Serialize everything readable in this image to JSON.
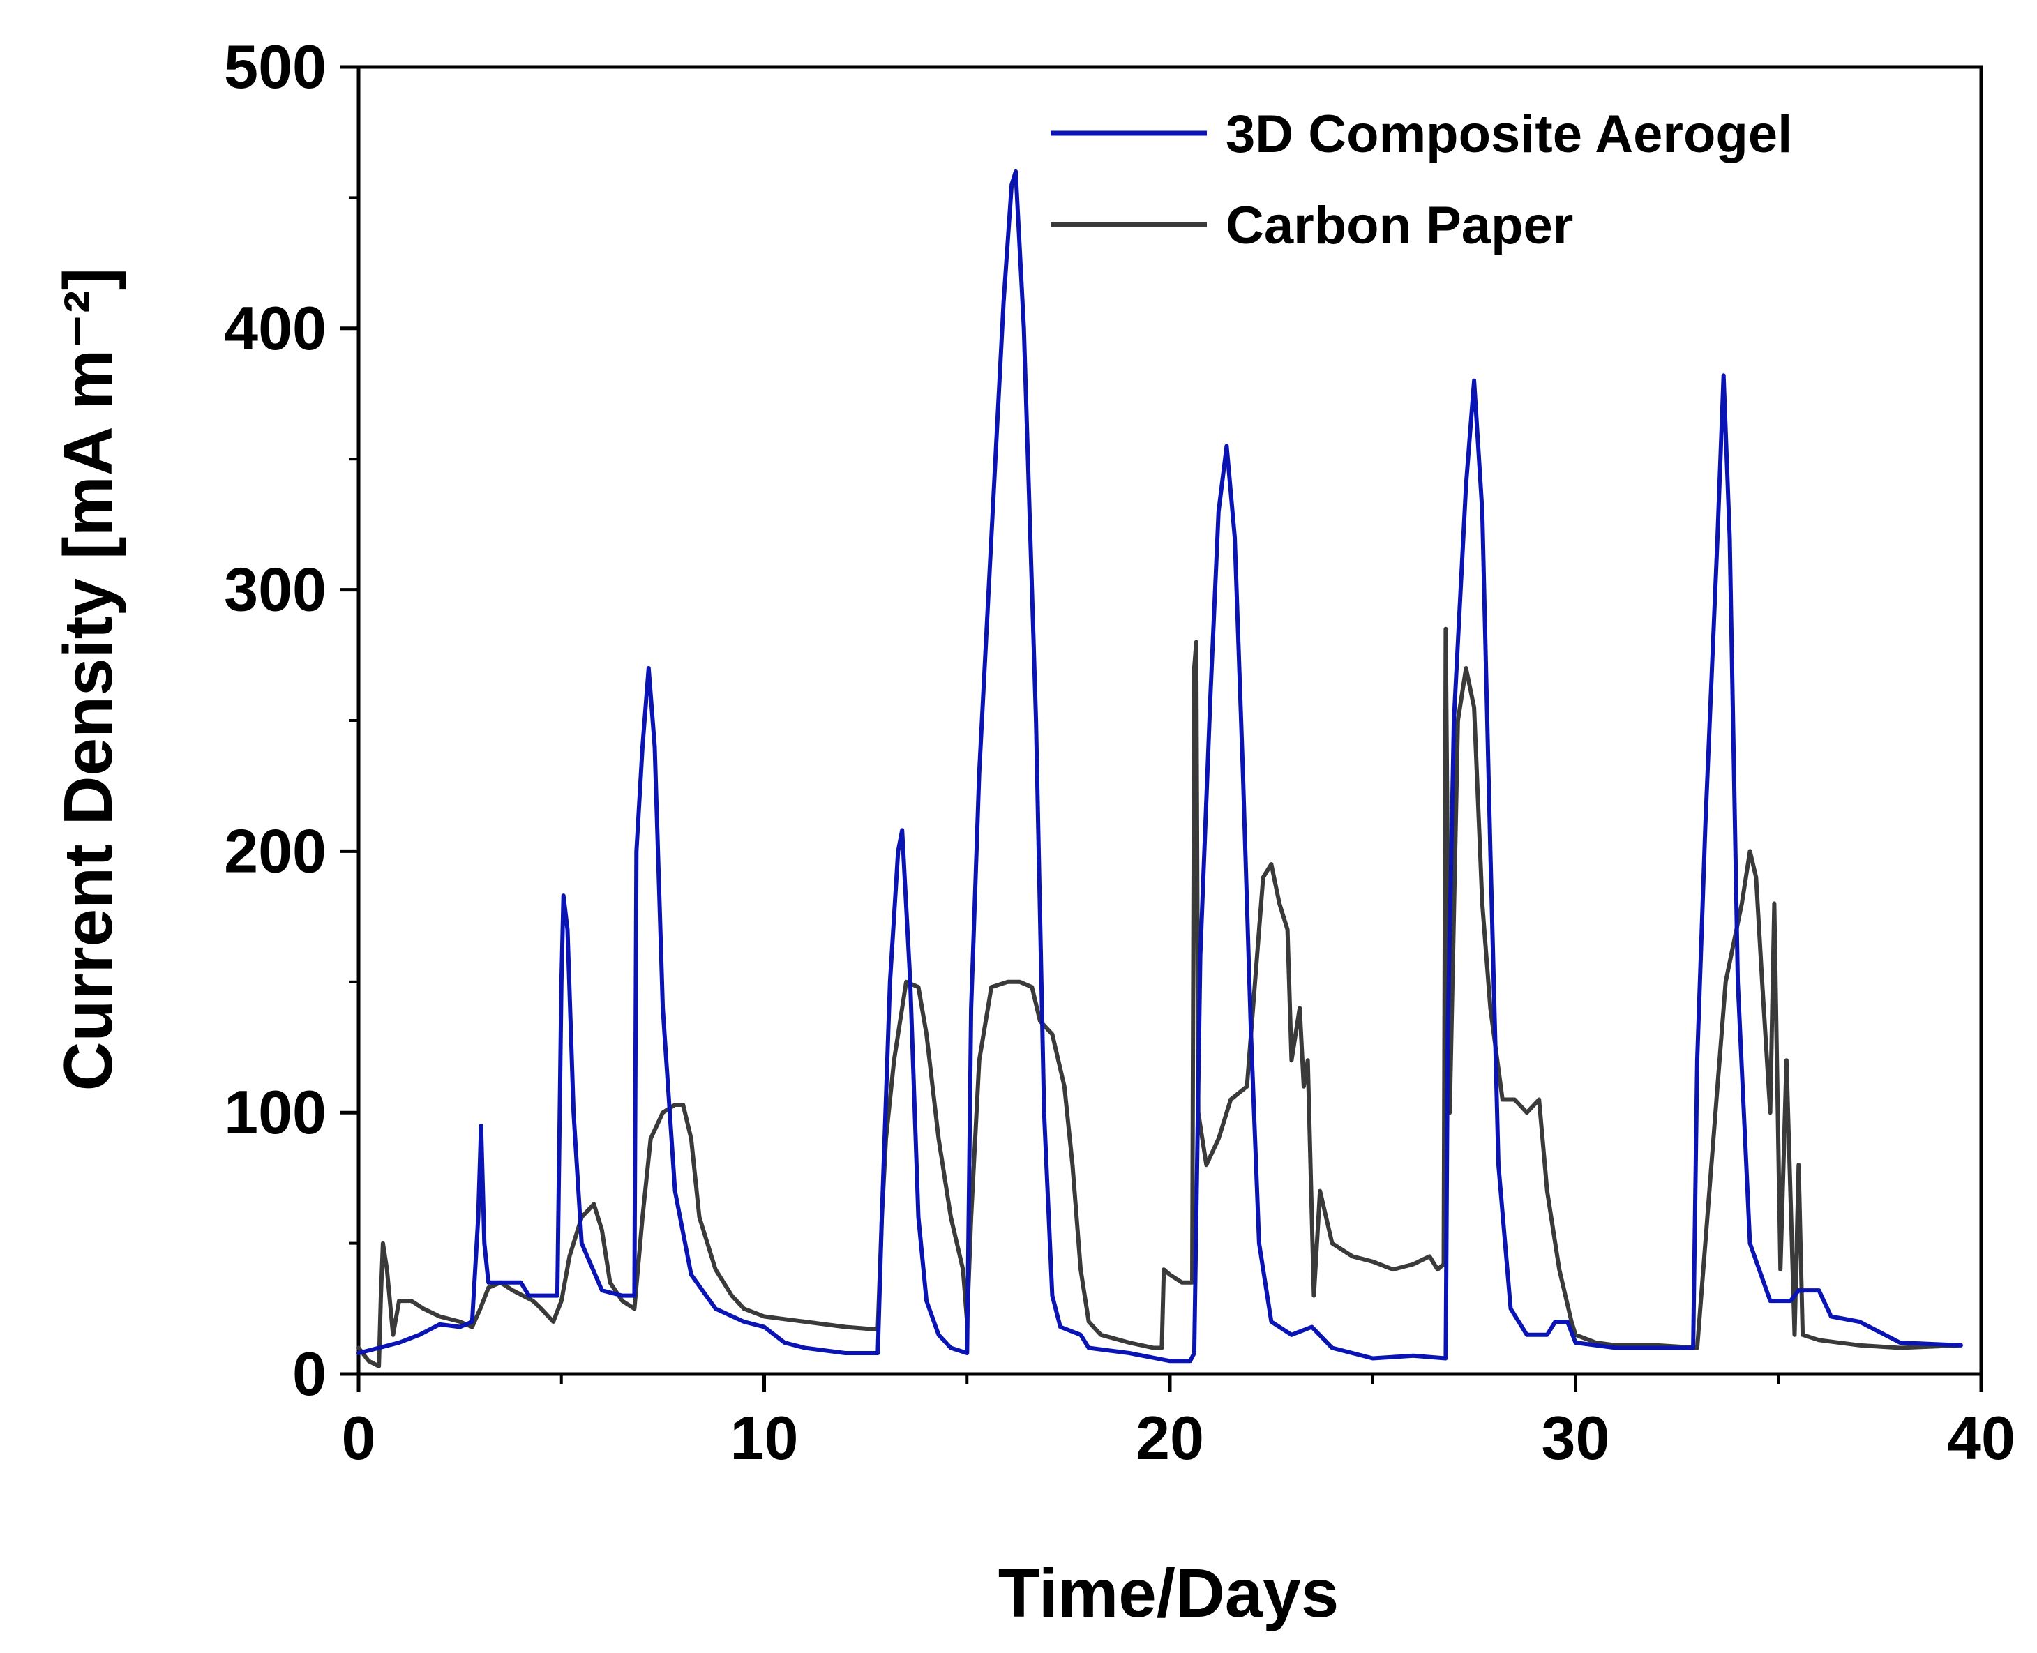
{
  "chart_data": {
    "type": "line",
    "title": "",
    "xlabel": "Time/Days",
    "ylabel": "Current Density [mA m⁻²]",
    "xlim": [
      0,
      40
    ],
    "ylim": [
      0,
      500
    ],
    "xticks": [
      "0",
      "10",
      "20",
      "30",
      "40"
    ],
    "yticks": [
      "0",
      "100",
      "200",
      "300",
      "400",
      "500"
    ],
    "legend_position": "top-right",
    "series": [
      {
        "name": "3D Composite Aerogel",
        "color": "#0a14b4",
        "points": [
          [
            0,
            8
          ],
          [
            0.5,
            10
          ],
          [
            1.0,
            12
          ],
          [
            1.5,
            15
          ],
          [
            2.0,
            19
          ],
          [
            2.5,
            18
          ],
          [
            2.8,
            20
          ],
          [
            2.95,
            60
          ],
          [
            3.02,
            95
          ],
          [
            3.1,
            50
          ],
          [
            3.2,
            35
          ],
          [
            3.5,
            35
          ],
          [
            4.0,
            35
          ],
          [
            4.2,
            30
          ],
          [
            4.6,
            30
          ],
          [
            4.9,
            30
          ],
          [
            5.0,
            150
          ],
          [
            5.05,
            183
          ],
          [
            5.15,
            170
          ],
          [
            5.3,
            100
          ],
          [
            5.5,
            50
          ],
          [
            6.0,
            32
          ],
          [
            6.5,
            30
          ],
          [
            6.8,
            30
          ],
          [
            6.85,
            200
          ],
          [
            7.0,
            240
          ],
          [
            7.15,
            270
          ],
          [
            7.3,
            240
          ],
          [
            7.5,
            140
          ],
          [
            7.8,
            70
          ],
          [
            8.2,
            38
          ],
          [
            8.8,
            25
          ],
          [
            9.5,
            20
          ],
          [
            10.0,
            18
          ],
          [
            10.5,
            12
          ],
          [
            11.0,
            10
          ],
          [
            12.0,
            8
          ],
          [
            12.8,
            8
          ],
          [
            12.9,
            60
          ],
          [
            13.1,
            150
          ],
          [
            13.3,
            200
          ],
          [
            13.4,
            208
          ],
          [
            13.6,
            150
          ],
          [
            13.8,
            60
          ],
          [
            14.0,
            28
          ],
          [
            14.3,
            15
          ],
          [
            14.6,
            10
          ],
          [
            15.0,
            8
          ],
          [
            15.1,
            140
          ],
          [
            15.3,
            230
          ],
          [
            15.6,
            320
          ],
          [
            15.9,
            410
          ],
          [
            16.1,
            455
          ],
          [
            16.2,
            460
          ],
          [
            16.4,
            400
          ],
          [
            16.7,
            250
          ],
          [
            16.9,
            100
          ],
          [
            17.1,
            30
          ],
          [
            17.3,
            18
          ],
          [
            17.8,
            15
          ],
          [
            18.0,
            10
          ],
          [
            19.0,
            8
          ],
          [
            20.0,
            5
          ],
          [
            20.5,
            5
          ],
          [
            20.6,
            8
          ],
          [
            20.75,
            160
          ],
          [
            21.0,
            260
          ],
          [
            21.2,
            330
          ],
          [
            21.4,
            355
          ],
          [
            21.6,
            320
          ],
          [
            21.8,
            230
          ],
          [
            22.0,
            130
          ],
          [
            22.2,
            50
          ],
          [
            22.5,
            20
          ],
          [
            23.0,
            15
          ],
          [
            23.5,
            18
          ],
          [
            24.0,
            10
          ],
          [
            25.0,
            6
          ],
          [
            26.0,
            7
          ],
          [
            26.8,
            6
          ],
          [
            26.85,
            130
          ],
          [
            27.0,
            250
          ],
          [
            27.3,
            340
          ],
          [
            27.5,
            380
          ],
          [
            27.7,
            330
          ],
          [
            27.9,
            200
          ],
          [
            28.1,
            80
          ],
          [
            28.4,
            25
          ],
          [
            28.8,
            15
          ],
          [
            29.3,
            15
          ],
          [
            29.5,
            20
          ],
          [
            29.8,
            20
          ],
          [
            30.0,
            12
          ],
          [
            31.0,
            10
          ],
          [
            32.0,
            10
          ],
          [
            32.9,
            10
          ],
          [
            33.0,
            120
          ],
          [
            33.2,
            210
          ],
          [
            33.5,
            320
          ],
          [
            33.65,
            382
          ],
          [
            33.8,
            320
          ],
          [
            34.0,
            150
          ],
          [
            34.3,
            50
          ],
          [
            34.8,
            28
          ],
          [
            35.3,
            28
          ],
          [
            35.5,
            32
          ],
          [
            36.0,
            32
          ],
          [
            36.3,
            22
          ],
          [
            37.0,
            20
          ],
          [
            38.0,
            12
          ],
          [
            39.5,
            11
          ]
        ]
      },
      {
        "name": "Carbon Paper",
        "color": "#3a3a3a",
        "points": [
          [
            0,
            10
          ],
          [
            0.25,
            5
          ],
          [
            0.5,
            3
          ],
          [
            0.55,
            30
          ],
          [
            0.6,
            50
          ],
          [
            0.7,
            40
          ],
          [
            0.85,
            15
          ],
          [
            1.0,
            28
          ],
          [
            1.3,
            28
          ],
          [
            1.6,
            25
          ],
          [
            2.0,
            22
          ],
          [
            2.5,
            20
          ],
          [
            2.8,
            18
          ],
          [
            3.0,
            25
          ],
          [
            3.2,
            33
          ],
          [
            3.5,
            35
          ],
          [
            3.8,
            32
          ],
          [
            4.3,
            28
          ],
          [
            4.5,
            25
          ],
          [
            4.8,
            20
          ],
          [
            5.0,
            28
          ],
          [
            5.2,
            45
          ],
          [
            5.5,
            60
          ],
          [
            5.8,
            65
          ],
          [
            6.0,
            55
          ],
          [
            6.2,
            35
          ],
          [
            6.5,
            28
          ],
          [
            6.8,
            25
          ],
          [
            7.0,
            60
          ],
          [
            7.2,
            90
          ],
          [
            7.5,
            100
          ],
          [
            7.8,
            103
          ],
          [
            8.0,
            103
          ],
          [
            8.2,
            90
          ],
          [
            8.4,
            60
          ],
          [
            8.8,
            40
          ],
          [
            9.2,
            30
          ],
          [
            9.5,
            25
          ],
          [
            10.0,
            22
          ],
          [
            10.5,
            21
          ],
          [
            11.0,
            20
          ],
          [
            12.0,
            18
          ],
          [
            12.8,
            17
          ],
          [
            12.9,
            60
          ],
          [
            13.0,
            90
          ],
          [
            13.2,
            120
          ],
          [
            13.5,
            150
          ],
          [
            13.8,
            148
          ],
          [
            14.0,
            130
          ],
          [
            14.3,
            90
          ],
          [
            14.6,
            60
          ],
          [
            14.9,
            40
          ],
          [
            15.0,
            20
          ],
          [
            15.1,
            60
          ],
          [
            15.3,
            120
          ],
          [
            15.6,
            148
          ],
          [
            16.0,
            150
          ],
          [
            16.3,
            150
          ],
          [
            16.6,
            148
          ],
          [
            16.8,
            135
          ],
          [
            17.1,
            130
          ],
          [
            17.4,
            110
          ],
          [
            17.6,
            80
          ],
          [
            17.8,
            40
          ],
          [
            18.0,
            20
          ],
          [
            18.3,
            15
          ],
          [
            19.0,
            12
          ],
          [
            19.6,
            10
          ],
          [
            19.8,
            10
          ],
          [
            19.85,
            40
          ],
          [
            20.0,
            38
          ],
          [
            20.3,
            35
          ],
          [
            20.55,
            35
          ],
          [
            20.6,
            270
          ],
          [
            20.65,
            280
          ],
          [
            20.7,
            100
          ],
          [
            20.9,
            80
          ],
          [
            21.2,
            90
          ],
          [
            21.5,
            105
          ],
          [
            21.9,
            110
          ],
          [
            22.1,
            150
          ],
          [
            22.3,
            190
          ],
          [
            22.5,
            195
          ],
          [
            22.7,
            180
          ],
          [
            22.9,
            170
          ],
          [
            23.0,
            120
          ],
          [
            23.2,
            140
          ],
          [
            23.3,
            110
          ],
          [
            23.4,
            120
          ],
          [
            23.55,
            30
          ],
          [
            23.7,
            70
          ],
          [
            24.0,
            50
          ],
          [
            24.5,
            45
          ],
          [
            25.0,
            43
          ],
          [
            25.5,
            40
          ],
          [
            26.0,
            42
          ],
          [
            26.4,
            45
          ],
          [
            26.6,
            40
          ],
          [
            26.75,
            42
          ],
          [
            26.8,
            285
          ],
          [
            26.9,
            100
          ],
          [
            27.1,
            250
          ],
          [
            27.3,
            270
          ],
          [
            27.5,
            255
          ],
          [
            27.7,
            180
          ],
          [
            27.9,
            140
          ],
          [
            28.2,
            105
          ],
          [
            28.5,
            105
          ],
          [
            28.8,
            100
          ],
          [
            29.1,
            105
          ],
          [
            29.3,
            70
          ],
          [
            29.6,
            40
          ],
          [
            29.9,
            20
          ],
          [
            30.0,
            15
          ],
          [
            30.5,
            12
          ],
          [
            31.0,
            11
          ],
          [
            32.0,
            11
          ],
          [
            33.0,
            10
          ],
          [
            33.5,
            110
          ],
          [
            33.7,
            150
          ],
          [
            33.9,
            165
          ],
          [
            34.1,
            180
          ],
          [
            34.3,
            200
          ],
          [
            34.45,
            190
          ],
          [
            34.6,
            150
          ],
          [
            34.8,
            100
          ],
          [
            34.9,
            180
          ],
          [
            35.05,
            40
          ],
          [
            35.2,
            120
          ],
          [
            35.4,
            15
          ],
          [
            35.5,
            80
          ],
          [
            35.6,
            15
          ],
          [
            36.0,
            13
          ],
          [
            37.0,
            11
          ],
          [
            38.0,
            10
          ],
          [
            39.5,
            11
          ]
        ]
      }
    ]
  }
}
